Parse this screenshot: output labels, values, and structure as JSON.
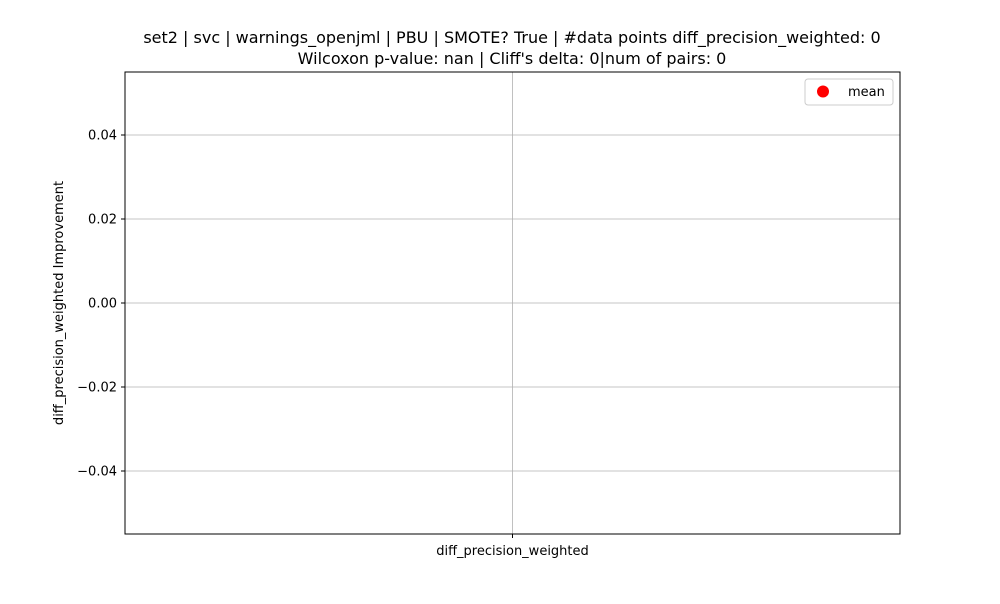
{
  "chart_data": {
    "type": "scatter",
    "title_line1": "set2 | svc | warnings_openjml | PBU | SMOTE? True | #data points diff_precision_weighted: 0",
    "title_line2": "Wilcoxon p-value: nan | Cliff's delta: 0|num of pairs: 0",
    "xlabel": "",
    "ylabel": "diff_precision_weighted Improvement",
    "categories": [
      "diff_precision_weighted"
    ],
    "series": [
      {
        "name": "mean",
        "color": "#ff0000",
        "values": []
      }
    ],
    "ylim": [
      -0.055,
      0.055
    ],
    "yticks": [
      0.04,
      0.02,
      0.0,
      -0.02,
      -0.04
    ],
    "ytick_labels": [
      "0.04",
      "0.02",
      "0.00",
      "−0.02",
      "−0.04"
    ],
    "grid": true,
    "legend_position": "top-right"
  }
}
